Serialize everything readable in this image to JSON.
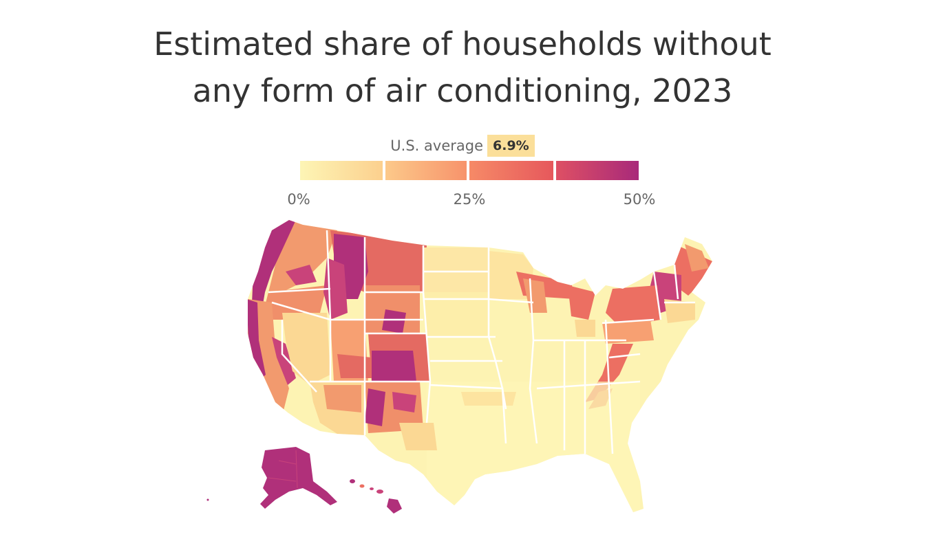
{
  "title_line1": "Estimated share of households without",
  "title_line2": "any form of air conditioning, 2023",
  "legend": {
    "average_label": "U.S. average",
    "average_value": "6.9%",
    "average_badge_color": "#fbdf9a",
    "scale_min": 0,
    "scale_max": 50,
    "segments": [
      {
        "from": 0,
        "to": 12.5,
        "color_start": "#fdf5b5",
        "color_end": "#fcd08e"
      },
      {
        "from": 12.5,
        "to": 25,
        "color_start": "#fcc98a",
        "color_end": "#f7936b"
      },
      {
        "from": 25,
        "to": 37.5,
        "color_start": "#f68a67",
        "color_end": "#e6585c"
      },
      {
        "from": 37.5,
        "to": 50,
        "color_start": "#de5064",
        "color_end": "#a8297a"
      }
    ],
    "ticks": [
      "0%",
      "25%",
      "50%"
    ]
  },
  "colors": {
    "low": "#fdf3b3",
    "mid_low": "#fbd894",
    "mid": "#f7a072",
    "mid_high": "#ec6f62",
    "high": "#b0307a",
    "state_border": "#ffffff"
  }
}
